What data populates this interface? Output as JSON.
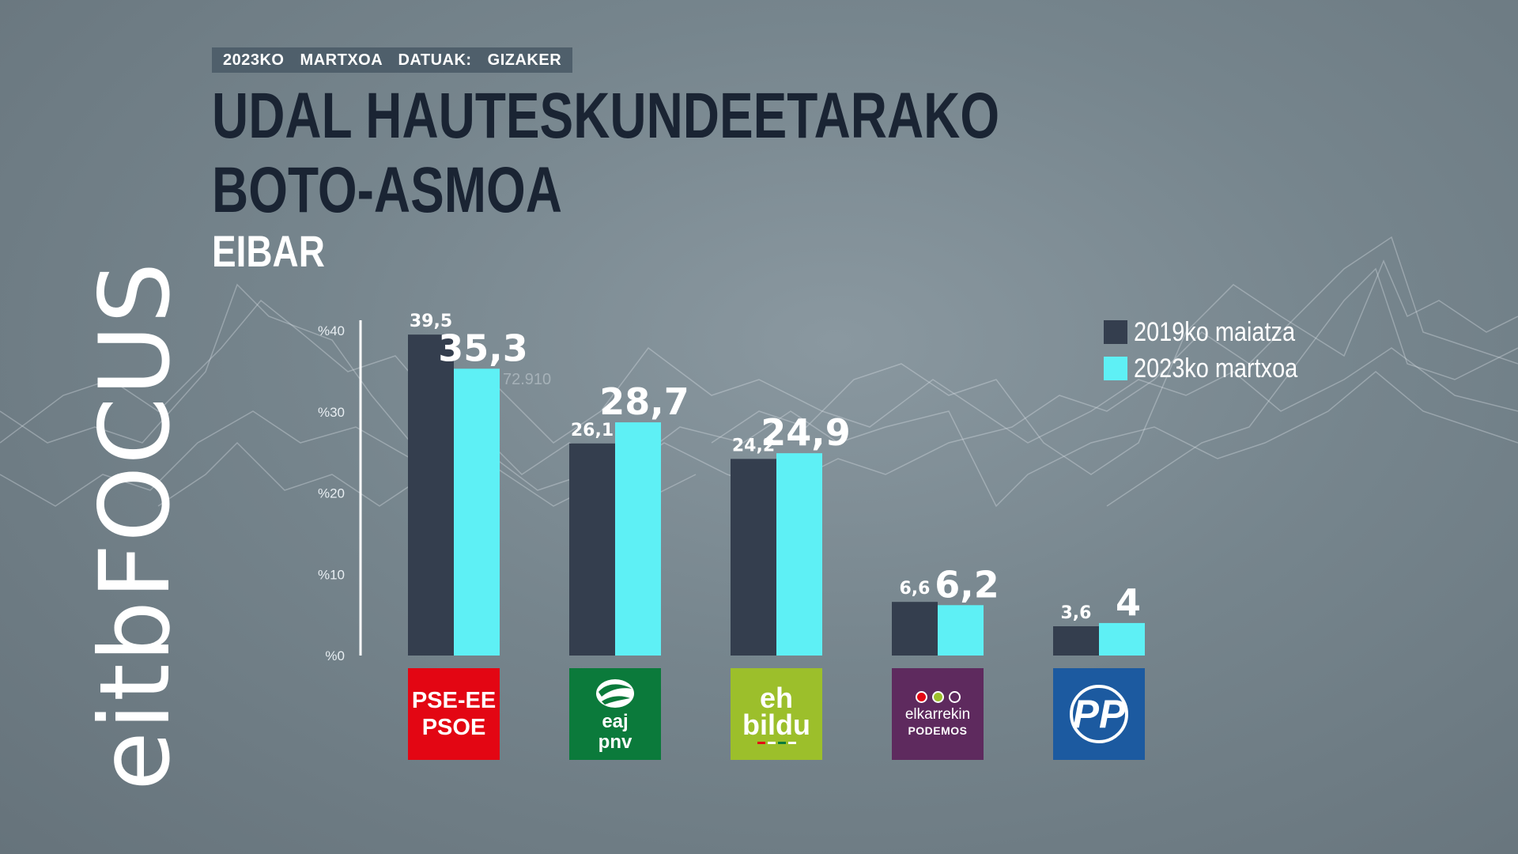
{
  "header": {
    "date_label": "2023KO MARTXOA",
    "source_label": "DATUAK: GIZAKER",
    "title_line1": "UDAL HAUTESKUNDEETARAKO",
    "title_line2": "BOTO-ASMOA",
    "subtitle": "EIBAR"
  },
  "branding": {
    "logo_text": "eitbFOCUS"
  },
  "legend": [
    {
      "label": "2019ko maiatza",
      "color": "#343e4e"
    },
    {
      "label": "2023ko martxoa",
      "color": "#5ef0f5"
    }
  ],
  "background_number": "72.910",
  "parties": {
    "psoe": {
      "line1": "PSE-EE",
      "line2": "PSOE",
      "color": "#e30613"
    },
    "pnv": {
      "line1": "eaj",
      "line2": "pnv",
      "color": "#0b7a3b"
    },
    "bildu": {
      "line1": "eh",
      "line2": "bildu",
      "color": "#9cbf2b"
    },
    "podemos": {
      "line1": "elkarrekin",
      "line2": "PODEMOS",
      "color": "#5e2a5e"
    },
    "pp": {
      "line1": "PP",
      "color": "#1c5aa0"
    }
  },
  "chart_data": {
    "type": "bar",
    "title": "UDAL HAUTESKUNDEETARAKO BOTO-ASMOA",
    "subtitle": "EIBAR",
    "categories": [
      "PSE-EE PSOE",
      "EAJ PNV",
      "EH BILDU",
      "ELKARREKIN PODEMOS",
      "PP"
    ],
    "yticks": [
      "%0",
      "%10",
      "%20",
      "%30",
      "%40"
    ],
    "ylim": [
      0,
      40
    ],
    "legend_position": "top-right",
    "series": [
      {
        "name": "2019ko maiatza",
        "color": "#343e4e",
        "values": [
          39.5,
          26.1,
          24.2,
          6.6,
          3.6
        ],
        "labels": [
          "39,5",
          "26,1",
          "24,2",
          "6,6",
          "3,6"
        ]
      },
      {
        "name": "2023ko martxoa",
        "color": "#5ef0f5",
        "values": [
          35.3,
          28.7,
          24.9,
          6.2,
          4
        ],
        "labels": [
          "35,3",
          "28,7",
          "24,9",
          "6,2",
          "4"
        ]
      }
    ]
  }
}
